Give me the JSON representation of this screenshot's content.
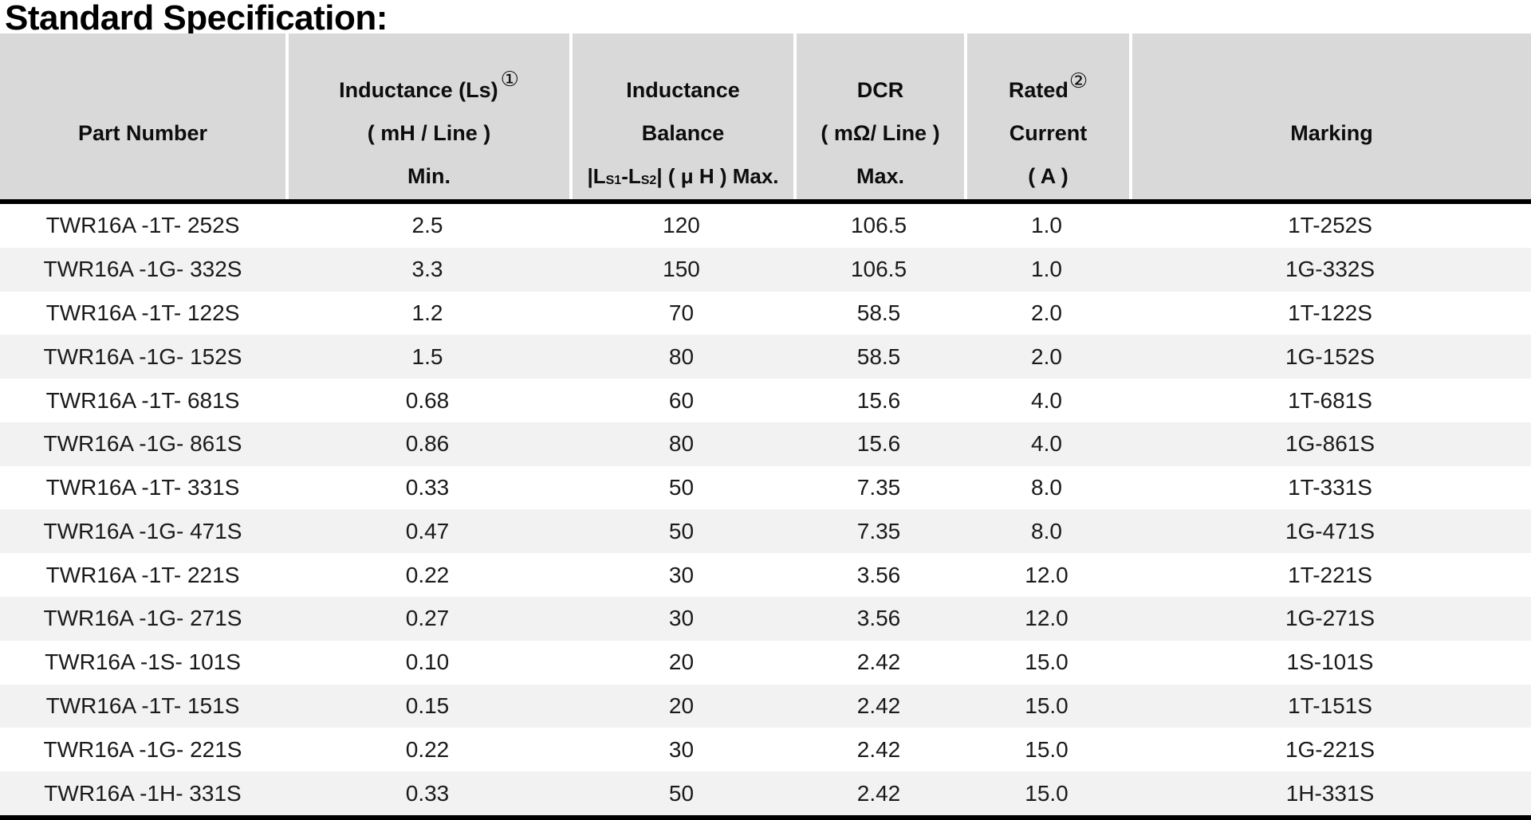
{
  "title": "Standard Specification:",
  "colors": {
    "header_bg": "#d9d9d9",
    "row_alt_bg": "#f2f2f2",
    "rule": "#000000",
    "divider": "#ffffff",
    "text": "#1a1a1a"
  },
  "table": {
    "header": {
      "col1": {
        "line2": "Part Number"
      },
      "col2": {
        "line1": "Inductance (Ls)",
        "sup": "①",
        "line2": "( mH / Line )",
        "line3": "Min."
      },
      "col3": {
        "line1": "Inductance",
        "line2": "Balance",
        "line3_parts": {
          "p1": "|L",
          "s1": "S1",
          "p2": "-L",
          "s2": "S2",
          "p3": "| ( μ H ) Max."
        }
      },
      "col4": {
        "line1": "DCR",
        "line2": "( mΩ/ Line )",
        "line3": "Max."
      },
      "col5": {
        "line1": "Rated",
        "sup": "②",
        "line2": "Current",
        "line3": "( A )"
      },
      "col6": {
        "line2": "Marking"
      }
    },
    "column_keys": [
      "part",
      "inductance",
      "balance",
      "dcr",
      "current",
      "marking"
    ],
    "rows": [
      {
        "part": "TWR16A -1T- 252S",
        "inductance": "2.5",
        "balance": "120",
        "dcr": "106.5",
        "current": "1.0",
        "marking": "1T-252S"
      },
      {
        "part": "TWR16A -1G- 332S",
        "inductance": "3.3",
        "balance": "150",
        "dcr": "106.5",
        "current": "1.0",
        "marking": "1G-332S"
      },
      {
        "part": "TWR16A -1T- 122S",
        "inductance": "1.2",
        "balance": "70",
        "dcr": "58.5",
        "current": "2.0",
        "marking": "1T-122S"
      },
      {
        "part": "TWR16A -1G- 152S",
        "inductance": "1.5",
        "balance": "80",
        "dcr": "58.5",
        "current": "2.0",
        "marking": "1G-152S"
      },
      {
        "part": "TWR16A -1T- 681S",
        "inductance": "0.68",
        "balance": "60",
        "dcr": "15.6",
        "current": "4.0",
        "marking": "1T-681S"
      },
      {
        "part": "TWR16A -1G- 861S",
        "inductance": "0.86",
        "balance": "80",
        "dcr": "15.6",
        "current": "4.0",
        "marking": "1G-861S"
      },
      {
        "part": "TWR16A -1T- 331S",
        "inductance": "0.33",
        "balance": "50",
        "dcr": "7.35",
        "current": "8.0",
        "marking": "1T-331S"
      },
      {
        "part": "TWR16A -1G- 471S",
        "inductance": "0.47",
        "balance": "50",
        "dcr": "7.35",
        "current": "8.0",
        "marking": "1G-471S"
      },
      {
        "part": "TWR16A -1T- 221S",
        "inductance": "0.22",
        "balance": "30",
        "dcr": "3.56",
        "current": "12.0",
        "marking": "1T-221S"
      },
      {
        "part": "TWR16A -1G- 271S",
        "inductance": "0.27",
        "balance": "30",
        "dcr": "3.56",
        "current": "12.0",
        "marking": "1G-271S"
      },
      {
        "part": "TWR16A -1S- 101S",
        "inductance": "0.10",
        "balance": "20",
        "dcr": "2.42",
        "current": "15.0",
        "marking": "1S-101S"
      },
      {
        "part": "TWR16A -1T- 151S",
        "inductance": "0.15",
        "balance": "20",
        "dcr": "2.42",
        "current": "15.0",
        "marking": "1T-151S"
      },
      {
        "part": "TWR16A -1G- 221S",
        "inductance": "0.22",
        "balance": "30",
        "dcr": "2.42",
        "current": "15.0",
        "marking": "1G-221S"
      },
      {
        "part": "TWR16A -1H- 331S",
        "inductance": "0.33",
        "balance": "50",
        "dcr": "2.42",
        "current": "15.0",
        "marking": "1H-331S"
      }
    ]
  }
}
